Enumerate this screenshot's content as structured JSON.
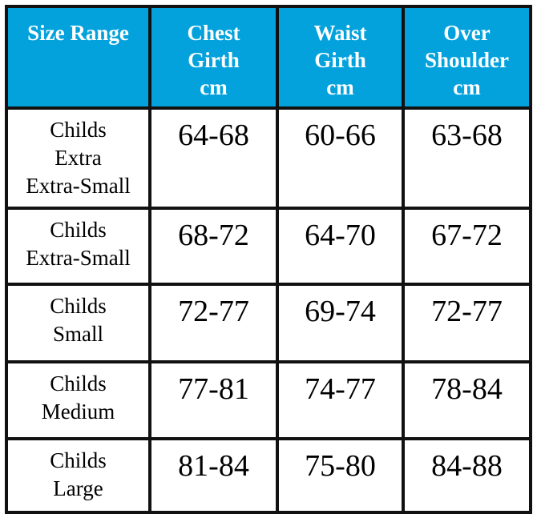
{
  "table": {
    "header": [
      [
        "Size Range"
      ],
      [
        "Chest",
        "Girth",
        "cm"
      ],
      [
        "Waist",
        "Girth",
        "cm"
      ],
      [
        "Over",
        "Shoulder",
        "cm"
      ]
    ],
    "rows": [
      [
        [
          "Childs",
          "Extra",
          "Extra-Small"
        ],
        "64-68",
        "60-66",
        "63-68"
      ],
      [
        [
          "Childs",
          "Extra-Small"
        ],
        "68-72",
        "64-70",
        "67-72"
      ],
      [
        [
          "Childs",
          "Small"
        ],
        "72-77",
        "69-74",
        "72-77"
      ],
      [
        [
          "Childs",
          "Medium"
        ],
        "77-81",
        "74-77",
        "78-84"
      ],
      [
        [
          "Childs",
          "Large"
        ],
        "81-84",
        "75-80",
        "84-88"
      ]
    ]
  }
}
